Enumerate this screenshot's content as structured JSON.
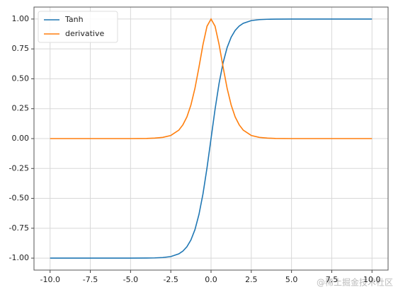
{
  "chart_data": {
    "type": "line",
    "x": [
      -10,
      -8,
      -6,
      -5,
      -4,
      -3.5,
      -3,
      -2.5,
      -2,
      -1.75,
      -1.5,
      -1.25,
      -1,
      -0.75,
      -0.5,
      -0.25,
      0,
      0.25,
      0.5,
      0.75,
      1,
      1.25,
      1.5,
      1.75,
      2,
      2.5,
      3,
      3.5,
      4,
      5,
      6,
      8,
      10
    ],
    "series": [
      {
        "name": "Tanh",
        "color": "#1f77b4",
        "values": [
          -1.0,
          -1.0,
          -1.0,
          -1.0,
          -0.999,
          -0.998,
          -0.995,
          -0.987,
          -0.964,
          -0.941,
          -0.905,
          -0.848,
          -0.762,
          -0.635,
          -0.462,
          -0.245,
          0,
          0.245,
          0.462,
          0.635,
          0.762,
          0.848,
          0.905,
          0.941,
          0.964,
          0.987,
          0.995,
          0.998,
          0.999,
          1.0,
          1.0,
          1.0,
          1.0
        ]
      },
      {
        "name": "derivative",
        "color": "#ff7f0e",
        "values": [
          0,
          0,
          0,
          0,
          0.001,
          0.004,
          0.01,
          0.026,
          0.071,
          0.115,
          0.181,
          0.281,
          0.42,
          0.597,
          0.787,
          0.94,
          1.0,
          0.94,
          0.787,
          0.597,
          0.42,
          0.281,
          0.181,
          0.115,
          0.071,
          0.026,
          0.01,
          0.004,
          0.001,
          0,
          0,
          0,
          0
        ]
      }
    ],
    "xlim": [
      -11,
      11
    ],
    "ylim": [
      -1.1,
      1.1
    ],
    "xticks": [
      {
        "value": -10,
        "label": "-10.0"
      },
      {
        "value": -7.5,
        "label": "-7.5"
      },
      {
        "value": -5,
        "label": "-5.0"
      },
      {
        "value": -2.5,
        "label": "-2.5"
      },
      {
        "value": 0,
        "label": "0.0"
      },
      {
        "value": 2.5,
        "label": "2.5"
      },
      {
        "value": 5,
        "label": "5.0"
      },
      {
        "value": 7.5,
        "label": "7.5"
      },
      {
        "value": 10,
        "label": "10.0"
      }
    ],
    "yticks": [
      {
        "value": -1,
        "label": "-1.00"
      },
      {
        "value": -0.75,
        "label": "-0.75"
      },
      {
        "value": -0.5,
        "label": "-0.50"
      },
      {
        "value": -0.25,
        "label": "-0.25"
      },
      {
        "value": 0,
        "label": "0.00"
      },
      {
        "value": 0.25,
        "label": "0.25"
      },
      {
        "value": 0.5,
        "label": "0.50"
      },
      {
        "value": 0.75,
        "label": "0.75"
      },
      {
        "value": 1,
        "label": "1.00"
      }
    ],
    "grid": true,
    "legend": "upper-left",
    "watermark": "@稀土掘金技术社区"
  }
}
